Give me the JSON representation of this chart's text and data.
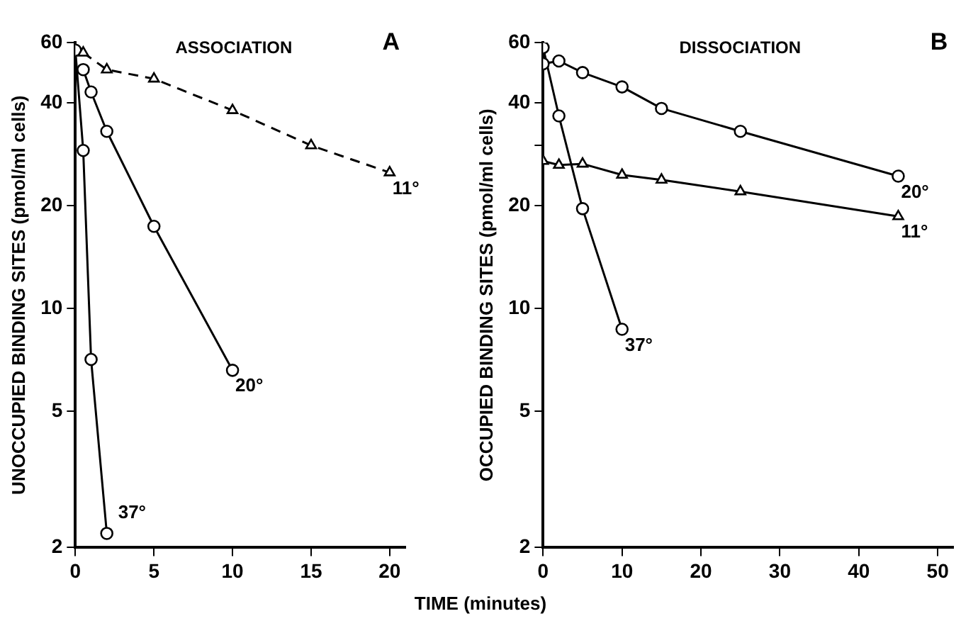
{
  "chart_data": [
    {
      "type": "line",
      "title": "A",
      "subtitle": "ASSOCIATION",
      "xlabel": "TIME (minutes)",
      "ylabel": "UNOCCUPIED BINDING SITES (pmol/ml cells)",
      "log": "y",
      "grid": false,
      "legend": false,
      "xlim": [
        0,
        21
      ],
      "xticks": [
        0,
        5,
        10,
        15,
        20
      ],
      "ylim": [
        2,
        60
      ],
      "yticks": [
        2,
        5,
        10,
        20,
        40,
        60
      ],
      "series": [
        {
          "color": "#000000",
          "marker": "triangle",
          "line_style": "dashed",
          "x": [
            0.5,
            2,
            5,
            10,
            15,
            20
          ],
          "values": [
            56,
            50,
            47,
            38,
            30,
            25
          ]
        },
        {
          "color": "#000000",
          "marker": "circle",
          "line_style": "solid",
          "x": [
            0.5,
            1,
            2,
            5,
            10
          ],
          "values": [
            50,
            43,
            33,
            17.4,
            6.6
          ]
        },
        {
          "color": "#000000",
          "marker": "circle",
          "line_style": "solid",
          "x": [
            0,
            0.5,
            1,
            2
          ],
          "values": [
            57,
            29,
            7.1,
            2.2
          ]
        }
      ],
      "annotations": [
        {
          "text": "11°",
          "x": 20,
          "y": 25
        },
        {
          "text": "20°",
          "x": 10,
          "y": 6.6
        },
        {
          "text": "37°",
          "x": 2,
          "y": 2.2
        }
      ]
    },
    {
      "type": "line",
      "title": "B",
      "subtitle": "DISSOCIATION",
      "ylabel": "OCCUPIED BINDING SITES (pmol/ml cells)",
      "log": "y",
      "grid": false,
      "legend": false,
      "xlim": [
        0,
        52
      ],
      "xticks": [
        0,
        10,
        20,
        30,
        40,
        50
      ],
      "ylim": [
        2,
        60
      ],
      "yticks": [
        2,
        5,
        10,
        20,
        {
          "value": 30,
          "label": null
        },
        40,
        60
      ],
      "series": [
        {
          "color": "#000000",
          "marker": "circle",
          "line_style": "solid",
          "x": [
            0,
            2,
            5,
            10,
            15,
            25,
            45
          ],
          "values": [
            52,
            53,
            49,
            44.5,
            38.5,
            33,
            24.4
          ]
        },
        {
          "color": "#000000",
          "marker": "triangle",
          "line_style": "solid",
          "x": [
            0,
            2,
            5,
            10,
            15,
            25,
            45
          ],
          "values": [
            27,
            26.3,
            26.5,
            24.6,
            23.8,
            22,
            18.6
          ]
        },
        {
          "color": "#000000",
          "marker": "circle",
          "line_style": "solid",
          "x": [
            0,
            2,
            5,
            10
          ],
          "values": [
            58,
            36.6,
            19.6,
            8.7
          ]
        }
      ],
      "annotations": [
        {
          "text": "20°",
          "x": 45,
          "y": 24.4
        },
        {
          "text": "11°",
          "x": 45,
          "y": 18.6
        },
        {
          "text": "37°",
          "x": 10,
          "y": 8.7
        }
      ]
    }
  ]
}
